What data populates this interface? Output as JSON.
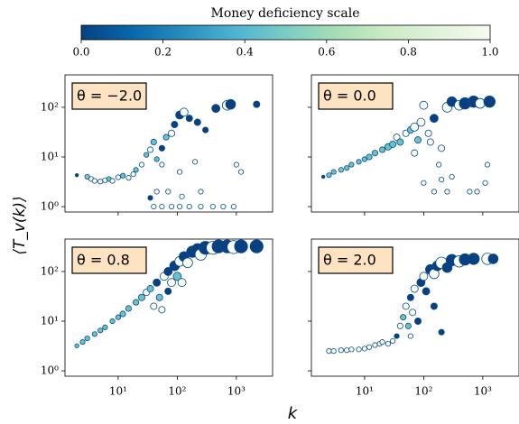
{
  "chart_data": {
    "type": "scatter",
    "xlabel": "k",
    "ylabel": "⟨T_v(k)⟩",
    "log_x": true,
    "log_y": true,
    "xlim": [
      1.26,
      4100
    ],
    "ylim": [
      0.78,
      450
    ],
    "xticks": [
      {
        "value": 10,
        "label": "10¹"
      },
      {
        "value": 100,
        "label": "10²"
      },
      {
        "value": 1000,
        "label": "10³"
      }
    ],
    "yticks": [
      {
        "value": 1,
        "label": "10⁰"
      },
      {
        "value": 10,
        "label": "10¹"
      },
      {
        "value": 100,
        "label": "10²"
      }
    ],
    "colorbar": {
      "title": "Money deficiency scale",
      "lim": [
        0,
        1
      ],
      "ticks": [
        {
          "value": 0,
          "label": "0.0"
        },
        {
          "value": 0.2,
          "label": "0.2"
        },
        {
          "value": 0.4,
          "label": "0.4"
        },
        {
          "value": 0.6,
          "label": "0.6"
        },
        {
          "value": 0.8,
          "label": "0.8"
        },
        {
          "value": 1,
          "label": "1.0"
        }
      ],
      "colors": [
        "#084081",
        "#0868ac",
        "#2b8cbe",
        "#4eb3d3",
        "#7bccc4",
        "#a8ddb5",
        "#ccebc5",
        "#e0f3db",
        "#f7fcf0"
      ]
    },
    "panels": [
      {
        "annotation": "θ = −2.0",
        "x": [
          2,
          3,
          3.5,
          4,
          5,
          6,
          7,
          8,
          10,
          12,
          15,
          18,
          20,
          25,
          30,
          35,
          40,
          45,
          55,
          65,
          80,
          90,
          110,
          130,
          160,
          220,
          300,
          450,
          700,
          800,
          2200,
          55,
          110,
          200,
          1000,
          1200,
          40,
          55,
          80,
          110,
          160,
          250,
          400,
          600,
          900,
          45,
          35,
          70,
          120,
          250
        ],
        "values": [
          4.3,
          4,
          3.6,
          3.3,
          3.2,
          3.4,
          3.6,
          3.3,
          3.9,
          4.2,
          3.8,
          4.5,
          5.5,
          7,
          11,
          14,
          20,
          9,
          15,
          25,
          30,
          45,
          70,
          80,
          60,
          50,
          35,
          95,
          110,
          115,
          115,
          7,
          5,
          8,
          7,
          5,
          1,
          1,
          1,
          1,
          1,
          1,
          1,
          1,
          1,
          2,
          1.5,
          2,
          1.6,
          2
        ],
        "sizes": [
          2,
          3,
          3,
          3,
          3,
          3,
          3,
          3,
          3,
          3,
          3,
          3,
          3,
          3,
          3,
          3.5,
          3.5,
          3,
          3.5,
          3.5,
          4,
          4,
          5,
          5,
          4,
          4,
          3.5,
          5,
          6,
          6,
          4,
          3,
          3,
          3,
          3,
          3,
          3,
          3,
          3,
          3,
          3,
          3,
          3,
          3,
          3,
          3,
          3,
          3,
          3,
          3
        ],
        "color_values": [
          0,
          0.5,
          1,
          1,
          1,
          1,
          0.45,
          1,
          1,
          0.45,
          1,
          1,
          0.45,
          1,
          0.45,
          1,
          0.45,
          0.45,
          0,
          0.45,
          1,
          0,
          0,
          1,
          0,
          0,
          0,
          0,
          1,
          0,
          0,
          1,
          1,
          1,
          1,
          1,
          1,
          1,
          1,
          1,
          1,
          1,
          1,
          1,
          1,
          1,
          0,
          1,
          1,
          1
        ]
      },
      {
        "annotation": "θ = 0.0",
        "x": [
          2,
          2.5,
          3,
          4,
          5,
          6,
          8,
          10,
          12,
          15,
          20,
          25,
          30,
          35,
          40,
          50,
          60,
          70,
          80,
          90,
          100,
          120,
          150,
          130,
          200,
          70,
          250,
          300,
          400,
          500,
          700,
          900,
          1300,
          100,
          150,
          200,
          250,
          300,
          600,
          800,
          1100,
          1200,
          180
        ],
        "values": [
          4,
          4.3,
          5,
          5.5,
          6,
          7,
          8,
          9,
          10,
          12,
          14,
          16,
          18,
          25,
          20,
          30,
          35,
          40,
          22,
          50,
          110,
          30,
          60,
          20,
          15,
          12,
          100,
          130,
          110,
          120,
          130,
          120,
          130,
          3,
          2,
          3.5,
          2,
          4,
          2,
          2,
          3,
          7,
          7
        ],
        "sizes": [
          2,
          3,
          3,
          3,
          3,
          3,
          3,
          3,
          3.5,
          3.5,
          3.5,
          4,
          4,
          4,
          4,
          4,
          4,
          5,
          4,
          5,
          5,
          4,
          5,
          4,
          4,
          4,
          6,
          6,
          6,
          7,
          7,
          6,
          7,
          3,
          3,
          3,
          3,
          3,
          3,
          3,
          3,
          3,
          3
        ],
        "color_values": [
          0,
          0.45,
          0.45,
          0.5,
          0.45,
          0.45,
          0.45,
          0.45,
          0.45,
          0.45,
          0.45,
          0.45,
          0.45,
          1,
          0.45,
          1,
          0.45,
          1,
          0.45,
          1,
          1,
          1,
          0,
          1,
          1,
          1,
          1,
          0,
          1,
          0,
          0,
          1,
          0,
          1,
          1,
          1,
          1,
          1,
          1,
          1,
          1,
          1,
          1
        ]
      },
      {
        "annotation": "θ = 0.8",
        "x": [
          2,
          2.5,
          3,
          4,
          5,
          6,
          8,
          10,
          12,
          15,
          20,
          25,
          30,
          35,
          40,
          45,
          50,
          55,
          60,
          70,
          80,
          90,
          100,
          110,
          130,
          150,
          180,
          220,
          250,
          300,
          400,
          500,
          700,
          900,
          1200,
          2200,
          70,
          120
        ],
        "values": [
          3.2,
          3.8,
          4.5,
          5.5,
          6.5,
          7.5,
          10,
          12,
          14,
          18,
          24,
          30,
          38,
          45,
          20,
          60,
          30,
          17,
          80,
          100,
          60,
          130,
          80,
          160,
          200,
          150,
          250,
          280,
          220,
          300,
          300,
          320,
          320,
          310,
          320,
          320,
          40,
          60
        ],
        "sizes": [
          2.5,
          3,
          3,
          3,
          3,
          3,
          3,
          3,
          3.5,
          3.5,
          3.5,
          4,
          4,
          4,
          4,
          4.5,
          4,
          4,
          5,
          5,
          5,
          6,
          5,
          6,
          6,
          6,
          7,
          7,
          7,
          8,
          8,
          8,
          8,
          8,
          8,
          8,
          4,
          5
        ],
        "color_values": [
          0.45,
          0.45,
          0.45,
          0.45,
          0.45,
          0.45,
          0.45,
          0.45,
          0.45,
          0.45,
          0.45,
          0.45,
          1,
          0.45,
          1,
          0,
          0.45,
          1,
          1,
          0,
          1,
          0,
          0.45,
          1,
          0,
          1,
          0,
          0,
          1,
          0,
          1,
          0,
          0,
          1,
          0,
          0,
          0,
          1
        ]
      },
      {
        "annotation": "θ = 2.0",
        "x": [
          2.5,
          3,
          4,
          5,
          6,
          8,
          10,
          12,
          15,
          18,
          20,
          25,
          30,
          35,
          40,
          45,
          50,
          55,
          60,
          65,
          70,
          80,
          90,
          100,
          110,
          130,
          150,
          170,
          200,
          200,
          250,
          300,
          400,
          500,
          700,
          1200,
          1500,
          60,
          150
        ],
        "values": [
          2.5,
          2.5,
          2.6,
          2.6,
          2.7,
          2.7,
          2.8,
          3,
          3.3,
          3.5,
          3.8,
          3.5,
          4,
          5,
          8,
          12,
          20,
          8,
          30,
          15,
          45,
          10,
          60,
          80,
          40,
          110,
          90,
          130,
          6,
          150,
          120,
          170,
          160,
          175,
          180,
          180,
          180,
          5,
          20
        ],
        "sizes": [
          3,
          3,
          3,
          3,
          3,
          3,
          3,
          3,
          3,
          3,
          3,
          3,
          3,
          3,
          3.5,
          3.5,
          4,
          3.5,
          4,
          4,
          4.5,
          4,
          5,
          5,
          4.5,
          6,
          6,
          6,
          3.5,
          7,
          6,
          7,
          7,
          7,
          7,
          7,
          6,
          3,
          4
        ],
        "color_values": [
          1,
          1,
          1,
          1,
          1,
          1,
          1,
          1,
          1,
          1,
          1,
          1,
          1,
          0,
          1,
          0.45,
          1,
          0.45,
          0,
          1,
          1,
          0,
          0,
          1,
          0,
          0,
          1,
          0,
          0,
          1,
          0,
          0,
          1,
          0,
          0,
          1,
          0,
          1,
          0
        ]
      }
    ]
  }
}
